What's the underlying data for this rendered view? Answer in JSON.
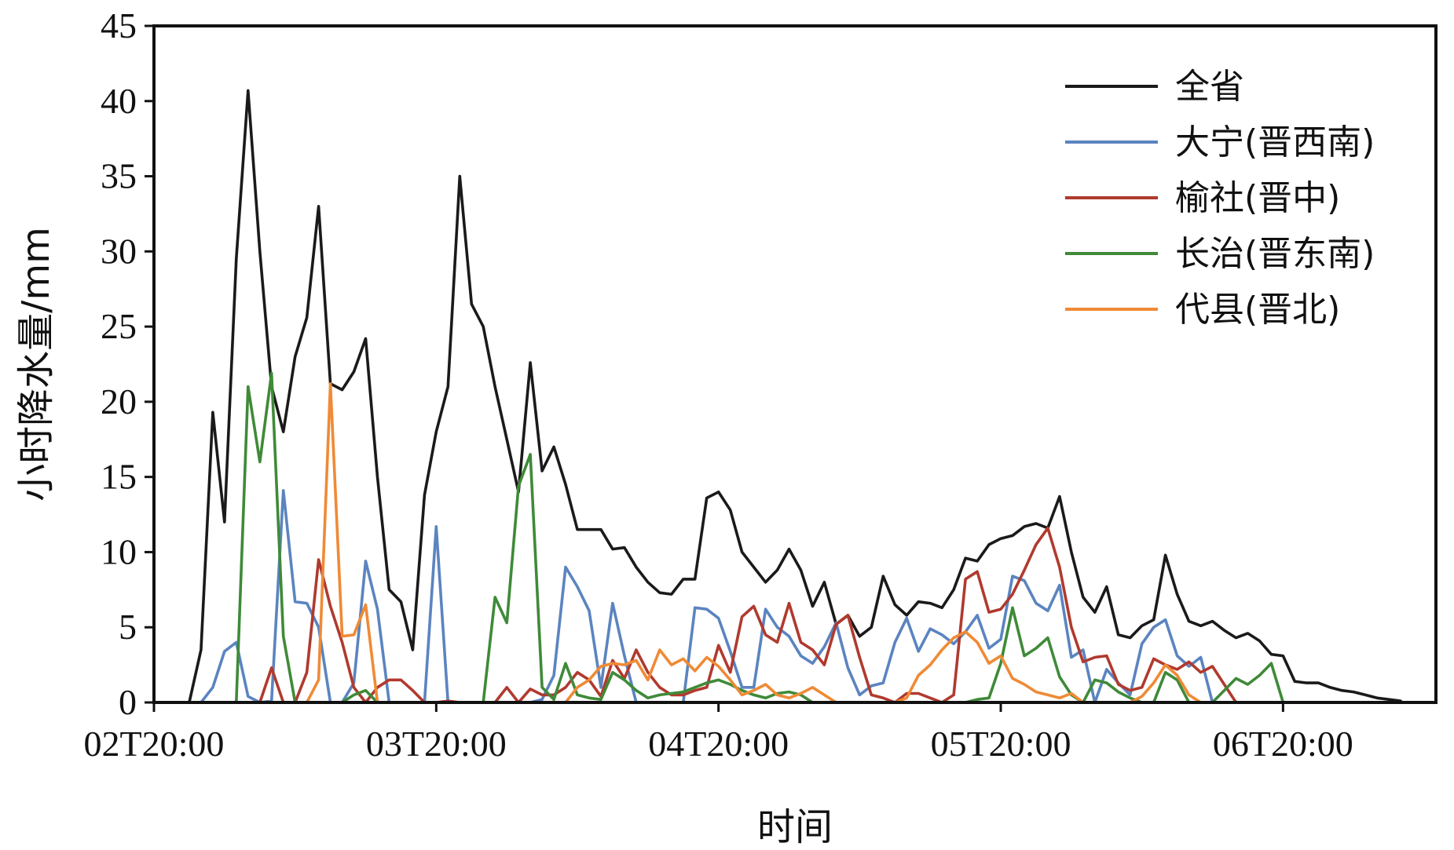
{
  "chart_data": {
    "type": "line",
    "title": "",
    "xlabel": "时间",
    "ylabel": "小时降水量/mm",
    "xlim": [
      0,
      109
    ],
    "ylim": [
      0,
      45
    ],
    "yticks": [
      0,
      5,
      10,
      15,
      20,
      25,
      30,
      35,
      40,
      45
    ],
    "xticks": [
      {
        "x": 0,
        "label": "02T20:00"
      },
      {
        "x": 24,
        "label": "03T20:00"
      },
      {
        "x": 48,
        "label": "04T20:00"
      },
      {
        "x": 72,
        "label": "05T20:00"
      },
      {
        "x": 96,
        "label": "06T20:00"
      }
    ],
    "grid": false,
    "legend": "top-right",
    "series": [
      {
        "name": "全省",
        "color": "#1a1a1a",
        "values": [
          0,
          0,
          0,
          0,
          3.5,
          19.3,
          12,
          29.5,
          40.7,
          30,
          21,
          18,
          23,
          25.6,
          33,
          21.2,
          20.8,
          22,
          24.2,
          15,
          7.5,
          6.7,
          3.5,
          13.8,
          18,
          21,
          35,
          26.5,
          25,
          21,
          17.5,
          14,
          22.6,
          15.4,
          17,
          14.5,
          11.5,
          11.5,
          11.5,
          10.2,
          10.3,
          9,
          8,
          7.3,
          7.2,
          8.2,
          8.2,
          13.6,
          14,
          12.8,
          10,
          9,
          8,
          8.8,
          10.2,
          8.8,
          6.4,
          8,
          5.2,
          5.8,
          4.4,
          5,
          8.4,
          6.5,
          5.8,
          6.7,
          6.6,
          6.3,
          7.5,
          9.6,
          9.4,
          10.5,
          10.9,
          11.1,
          11.7,
          11.9,
          11.6,
          13.7,
          10,
          7,
          6,
          7.7,
          4.5,
          4.3,
          5.1,
          5.5,
          9.8,
          7.2,
          5.4,
          5.1,
          5.4,
          4.8,
          4.3,
          4.6,
          4.1,
          3.2,
          3.1,
          1.4,
          1.3,
          1.3,
          1,
          0.8,
          0.7,
          0.5,
          0.3,
          0.2,
          0.1
        ]
      },
      {
        "name": "大宁(晋西南)",
        "color": "#5b84c0",
        "values": [
          0,
          0,
          0,
          0,
          0,
          1,
          3.4,
          4,
          0.4,
          0,
          0.1,
          14.1,
          6.7,
          6.6,
          5,
          0,
          0,
          1.3,
          9.4,
          6.2,
          0,
          0,
          0,
          0,
          11.7,
          0,
          0,
          0,
          0,
          0,
          0,
          0,
          0,
          0.2,
          1.8,
          9,
          7.7,
          6.1,
          1,
          6.6,
          3.1,
          0,
          0,
          0,
          0,
          0,
          6.3,
          6.2,
          5.6,
          3.4,
          1,
          1,
          6.2,
          5,
          4.4,
          3.1,
          2.6,
          3.7,
          5.3,
          2.3,
          0.5,
          1.1,
          1.3,
          4,
          5.6,
          3.4,
          4.9,
          4.5,
          3.9,
          4.7,
          5.8,
          3.6,
          4.2,
          8.4,
          8.1,
          6.6,
          6.1,
          7.8,
          3,
          3.5,
          0,
          2.2,
          1.3,
          0.5,
          3.9,
          5,
          5.5,
          3.1,
          2.4,
          3,
          0,
          0,
          0,
          0,
          0,
          0,
          0,
          0,
          0,
          0,
          0,
          0,
          0,
          0,
          0,
          0,
          0,
          0,
          0,
          0
        ]
      },
      {
        "name": "榆社(晋中)",
        "color": "#b03a2e",
        "values": [
          0,
          0,
          0,
          0,
          0,
          0,
          0,
          0,
          0,
          0,
          2.3,
          0,
          0,
          2,
          9.5,
          6.4,
          4,
          1,
          0,
          1,
          1.5,
          1.5,
          0.8,
          0,
          0,
          0.1,
          0,
          0,
          0,
          0,
          1,
          0,
          0.9,
          0.5,
          0.5,
          1,
          2,
          1.5,
          0.4,
          2.8,
          1.6,
          3.5,
          2,
          1,
          0.5,
          0.5,
          0.8,
          1,
          3.8,
          2,
          5.7,
          6.4,
          4.5,
          4,
          6.6,
          4,
          3.5,
          2.5,
          5.2,
          5.8,
          3,
          0.5,
          0.3,
          0,
          0.6,
          0.6,
          0.3,
          0,
          0.5,
          8.2,
          8.7,
          6,
          6.2,
          7.2,
          8.8,
          10.5,
          11.6,
          9,
          5,
          2.7,
          3,
          3.1,
          1.2,
          0.8,
          1,
          2.9,
          2.5,
          2.2,
          2.7,
          2,
          2.4,
          1.2,
          0,
          0,
          0,
          0,
          0,
          0,
          0,
          0,
          0,
          0,
          0,
          0,
          0,
          0,
          0,
          0,
          0,
          0
        ]
      },
      {
        "name": "长治(晋东南)",
        "color": "#3f8a38",
        "values": [
          0,
          0,
          0,
          0,
          0,
          0,
          0,
          0,
          21,
          16,
          21.9,
          4.4,
          0,
          0,
          0,
          0,
          0,
          0.5,
          0.8,
          0,
          0,
          0,
          0,
          0,
          0,
          0,
          0,
          0,
          0,
          7,
          5.3,
          14.4,
          16.5,
          1,
          0.2,
          2.6,
          0.5,
          0.3,
          0.2,
          2,
          1.5,
          0.8,
          0.3,
          0.5,
          0.6,
          0.7,
          1,
          1.3,
          1.5,
          1.2,
          0.8,
          0.5,
          0.3,
          0.6,
          0.7,
          0.5,
          0,
          0,
          0,
          0,
          0,
          0,
          0,
          0,
          0,
          0,
          0,
          0,
          0,
          0,
          0.2,
          0.3,
          2.6,
          6.3,
          3.1,
          3.6,
          4.3,
          1.7,
          0.5,
          0,
          1.5,
          1.3,
          0.7,
          0.3,
          0,
          0,
          2,
          1.5,
          0,
          0,
          0,
          0.8,
          1.6,
          1.2,
          1.8,
          2.6,
          0,
          0,
          0,
          0,
          0,
          0,
          0,
          0,
          0,
          0,
          0,
          0,
          0,
          0
        ]
      },
      {
        "name": "代县(晋北)",
        "color": "#ef8a36",
        "values": [
          0,
          0,
          0,
          0,
          0,
          0,
          0,
          0,
          0,
          0,
          0,
          0,
          0,
          0,
          1.5,
          21.2,
          4.4,
          4.5,
          6.5,
          0,
          0,
          0,
          0,
          0,
          0,
          0,
          0,
          0,
          0,
          0,
          0,
          0,
          0,
          0,
          0,
          0,
          1,
          1.5,
          2.4,
          2.6,
          2.5,
          2.8,
          1.5,
          3.5,
          2.5,
          2.9,
          2.1,
          3,
          2.4,
          1.5,
          0.5,
          0.8,
          1.2,
          0.5,
          0.3,
          0.6,
          1,
          0.5,
          0,
          0,
          0,
          0,
          0,
          0,
          0.3,
          1.8,
          2.5,
          3.5,
          4.3,
          4.7,
          4,
          2.6,
          3.1,
          1.6,
          1.2,
          0.7,
          0.5,
          0.3,
          0.6,
          0,
          0,
          0,
          0,
          0,
          0.4,
          1.3,
          2.5,
          1.8,
          0.5,
          0,
          0,
          0,
          0,
          0,
          0,
          0,
          0,
          0,
          0,
          0,
          0,
          0,
          0,
          0,
          0,
          0,
          0,
          0,
          0
        ]
      }
    ]
  }
}
